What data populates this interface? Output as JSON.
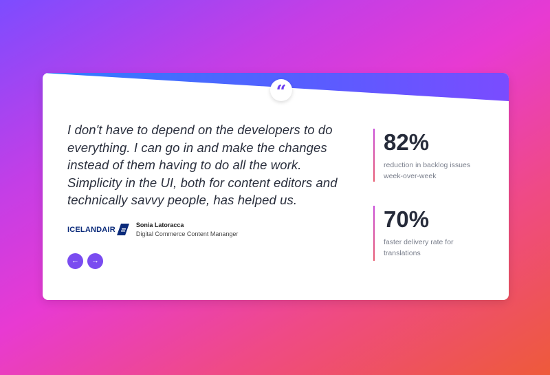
{
  "quote": "I don't have to depend on the developers to do everything. I can go in and make the changes instead of them having to do all the work. Simplicity in the UI, both for content editors and technically savvy people, has helped us.",
  "quote_icon": "“",
  "author": {
    "company_logo": "ICELANDAIR",
    "name": "Sonia Latoracca",
    "role": "Digital Commerce Content Mananger"
  },
  "nav": {
    "prev": "←",
    "next": "→"
  },
  "stats": [
    {
      "value": "82%",
      "label": "reduction in backlog issues week-over-week"
    },
    {
      "value": "70%",
      "label": "faster delivery rate for translations"
    }
  ],
  "colors": {
    "accent": "#7a4cf0",
    "text": "#262b3a"
  }
}
